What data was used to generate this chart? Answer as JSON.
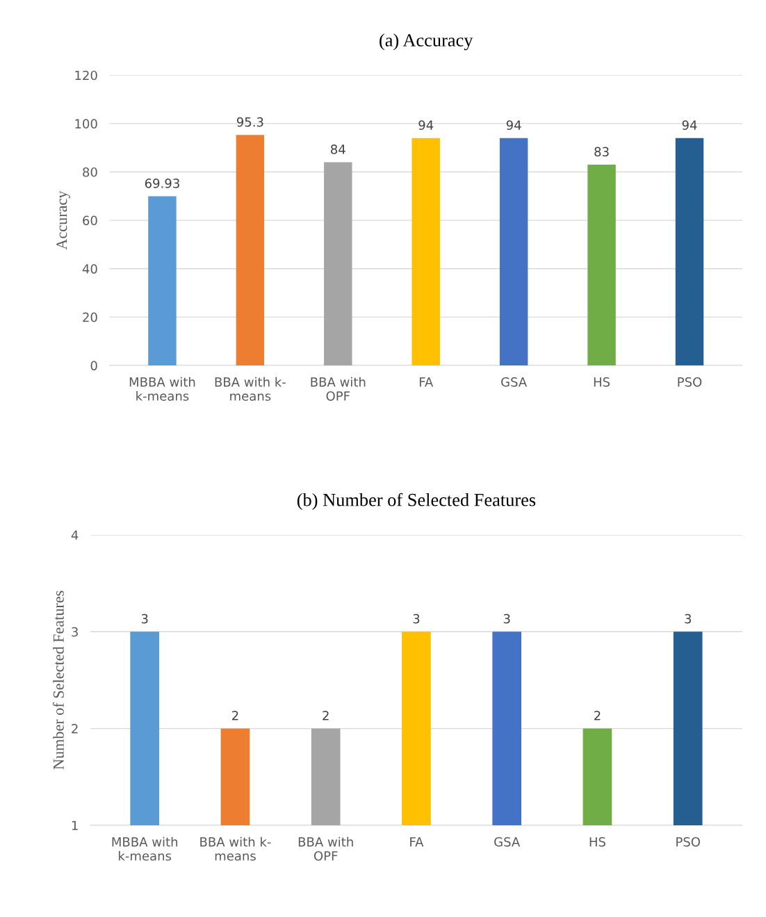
{
  "chart_data": [
    {
      "type": "bar",
      "title": "(a) Accuracy",
      "ylabel": "Accuracy",
      "categories": [
        "MBBA with k-means",
        "BBA with k-means",
        "BBA with OPF",
        "FA",
        "GSA",
        "HS",
        "PSO"
      ],
      "values": [
        69.93,
        95.3,
        84,
        94,
        94,
        83,
        94
      ],
      "colors": [
        "#5b9bd5",
        "#ed7d31",
        "#a5a5a5",
        "#ffc000",
        "#4472c4",
        "#70ad47",
        "#255e91"
      ],
      "ylim": [
        0,
        120
      ],
      "yticks": [
        0,
        20,
        40,
        60,
        80,
        100,
        120
      ],
      "grid": "y",
      "legend": false,
      "data_labels": true
    },
    {
      "type": "bar",
      "title": "(b) Number of Selected Features",
      "ylabel": "Number of Selected Features",
      "categories": [
        "MBBA with k-means",
        "BBA with k-means",
        "BBA with OPF",
        "FA",
        "GSA",
        "HS",
        "PSO"
      ],
      "values": [
        3,
        2,
        2,
        3,
        3,
        2,
        3
      ],
      "colors": [
        "#5b9bd5",
        "#ed7d31",
        "#a5a5a5",
        "#ffc000",
        "#4472c4",
        "#70ad47",
        "#255e91"
      ],
      "ylim": [
        1,
        4
      ],
      "yticks": [
        1,
        2,
        3,
        4
      ],
      "grid": "y",
      "legend": false,
      "data_labels": true
    }
  ]
}
